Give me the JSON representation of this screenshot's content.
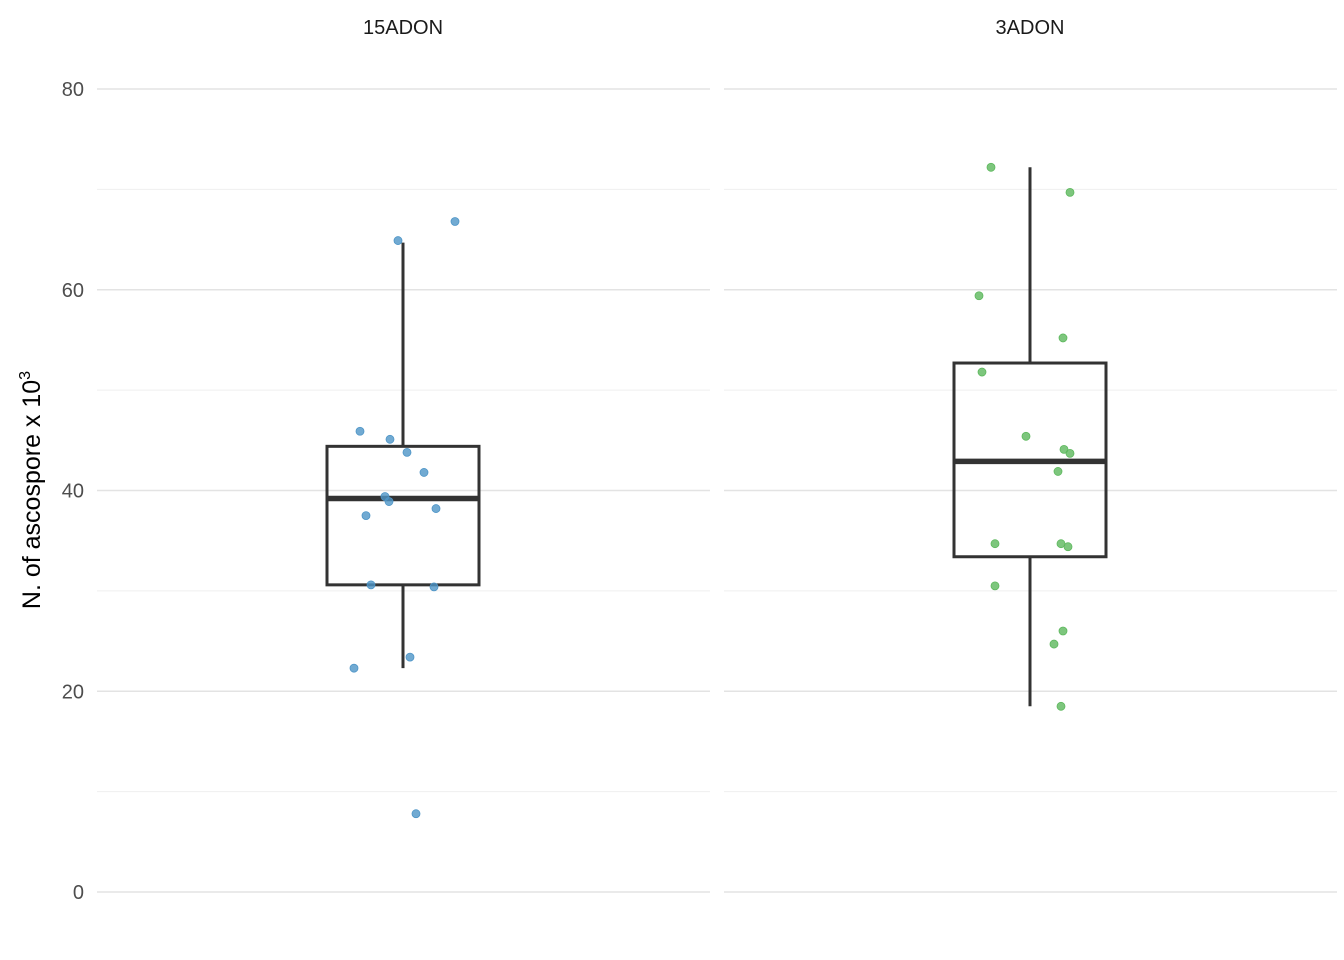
{
  "chart_data": {
    "type": "box",
    "ylabel": "N. of ascospore x 10",
    "ylabel_superscript": "3",
    "ylim": [
      0,
      80
    ],
    "yticks": [
      "0",
      "20",
      "40",
      "60",
      "80"
    ],
    "grid": true,
    "facets": [
      {
        "label": "15ADON",
        "color": "#4E95C7",
        "box": {
          "whisker_low": 22.3,
          "q1": 30.6,
          "median": 39.2,
          "q3": 44.4,
          "whisker_high": 64.7
        },
        "points": [
          {
            "x": -0.05,
            "y": 64.9
          },
          {
            "x": 0.52,
            "y": 66.8
          },
          {
            "x": -0.43,
            "y": 45.9
          },
          {
            "x": -0.13,
            "y": 45.1
          },
          {
            "x": 0.04,
            "y": 43.8
          },
          {
            "x": 0.21,
            "y": 41.8
          },
          {
            "x": -0.18,
            "y": 39.4
          },
          {
            "x": -0.14,
            "y": 38.9
          },
          {
            "x": 0.33,
            "y": 38.2
          },
          {
            "x": -0.37,
            "y": 37.5
          },
          {
            "x": -0.32,
            "y": 30.6
          },
          {
            "x": 0.31,
            "y": 30.4
          },
          {
            "x": 0.07,
            "y": 23.4
          },
          {
            "x": -0.49,
            "y": 22.3
          },
          {
            "x": 0.13,
            "y": 7.8
          }
        ]
      },
      {
        "label": "3ADON",
        "color": "#5DB85D",
        "box": {
          "whisker_low": 18.5,
          "q1": 33.4,
          "median": 42.9,
          "q3": 52.7,
          "whisker_high": 72.2
        },
        "points": [
          {
            "x": -0.39,
            "y": 72.2
          },
          {
            "x": 0.4,
            "y": 69.7
          },
          {
            "x": -0.51,
            "y": 59.4
          },
          {
            "x": 0.33,
            "y": 55.2
          },
          {
            "x": -0.48,
            "y": 51.8
          },
          {
            "x": -0.04,
            "y": 45.4
          },
          {
            "x": 0.34,
            "y": 44.1
          },
          {
            "x": 0.4,
            "y": 43.7
          },
          {
            "x": 0.28,
            "y": 41.9
          },
          {
            "x": -0.35,
            "y": 34.7
          },
          {
            "x": 0.31,
            "y": 34.7
          },
          {
            "x": 0.38,
            "y": 34.4
          },
          {
            "x": -0.35,
            "y": 30.5
          },
          {
            "x": 0.33,
            "y": 26.0
          },
          {
            "x": 0.24,
            "y": 24.7
          },
          {
            "x": 0.31,
            "y": 18.5
          }
        ]
      }
    ]
  }
}
